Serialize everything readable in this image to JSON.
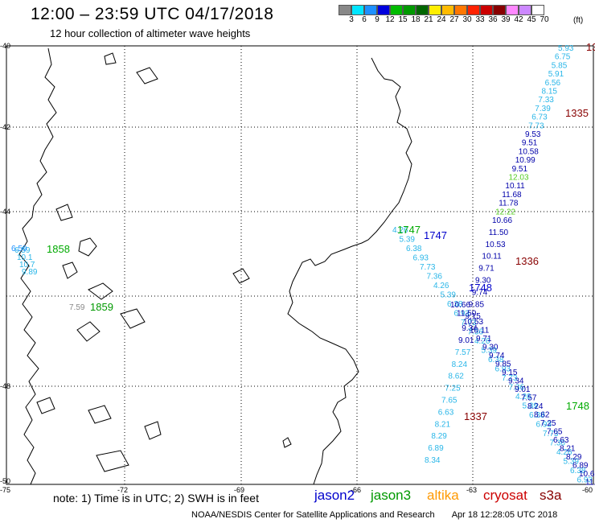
{
  "header": {
    "title": "12:00 – 23:59 UTC 04/17/2018",
    "subtitle": "12 hour collection of altimeter wave heights"
  },
  "colorbar": {
    "labels": [
      "3",
      "6",
      "9",
      "12",
      "15",
      "18",
      "21",
      "24",
      "27",
      "30",
      "33",
      "36",
      "39",
      "42",
      "45",
      "70"
    ],
    "unit": "(ft)",
    "colors": [
      "#888888",
      "#00e5ff",
      "#1e90ff",
      "#0000dd",
      "#00bb00",
      "#009900",
      "#006600",
      "#ffee00",
      "#ffbb00",
      "#ff7700",
      "#ff2200",
      "#cc0000",
      "#880000",
      "#ff88ff",
      "#cc88ff",
      "#ffffff"
    ]
  },
  "axes": {
    "lat_labels": [
      "-40",
      "-42",
      "-44",
      "-46",
      "-48",
      "-50"
    ],
    "lon_labels": [
      "-75",
      "-72",
      "-69",
      "-66",
      "-63",
      "-60"
    ]
  },
  "passes": [
    {
      "label": "1335",
      "color": "#880000"
    },
    {
      "label": "1747",
      "color": "#00aa00"
    },
    {
      "label": "1747",
      "color": "#0000cc"
    },
    {
      "label": "1336",
      "color": "#880000"
    },
    {
      "label": "1748",
      "color": "#0000cc"
    },
    {
      "label": "1858",
      "color": "#00aa00"
    },
    {
      "label": "1859",
      "color": "#009900"
    },
    {
      "label": "1337",
      "color": "#880000"
    },
    {
      "label": "1748",
      "color": "#00aa00"
    },
    {
      "label": "13",
      "color": "#880000"
    }
  ],
  "track_values": {
    "east": [
      "5.93",
      "6.75",
      "5.85",
      "5.91",
      "6.56",
      "8.15",
      "7.33",
      "7.39",
      "6.73",
      "7.73",
      "9.53",
      "9.51",
      "10.58",
      "10.99",
      "9.51",
      "12.03",
      "10.11",
      "11.68",
      "11.78",
      "12.22",
      "10.66",
      "11.50",
      "10.53",
      "10.11",
      "9.71",
      "9.30",
      "9.74",
      "9.85",
      "9.15",
      "9.34",
      "9.01",
      "7.57",
      "8.24",
      "8.62",
      "7.25",
      "7.65",
      "6.63",
      "8.21",
      "8.29",
      "6.89",
      "8.34"
    ],
    "cyan_track": [
      "4.26",
      "5.39",
      "6.38",
      "6.93",
      "7.73",
      "7.36"
    ],
    "west": [
      "6.59",
      "1858"
    ],
    "misc": [
      "7.59"
    ]
  },
  "footer": {
    "note": "note:  1) Time is in UTC;  2) SWH is in feet",
    "credit": "NOAA/NESDIS Center for Satellite Applications and Research",
    "timestamp": "Apr 18 12:28:05 UTC 2018",
    "missions": [
      {
        "name": "jason2",
        "color": "#0000cc"
      },
      {
        "name": "jason3",
        "color": "#009900"
      },
      {
        "name": "altika",
        "color": "#ff9900"
      },
      {
        "name": "cryosat",
        "color": "#cc0000"
      },
      {
        "name": "s3a",
        "color": "#880000"
      }
    ]
  }
}
